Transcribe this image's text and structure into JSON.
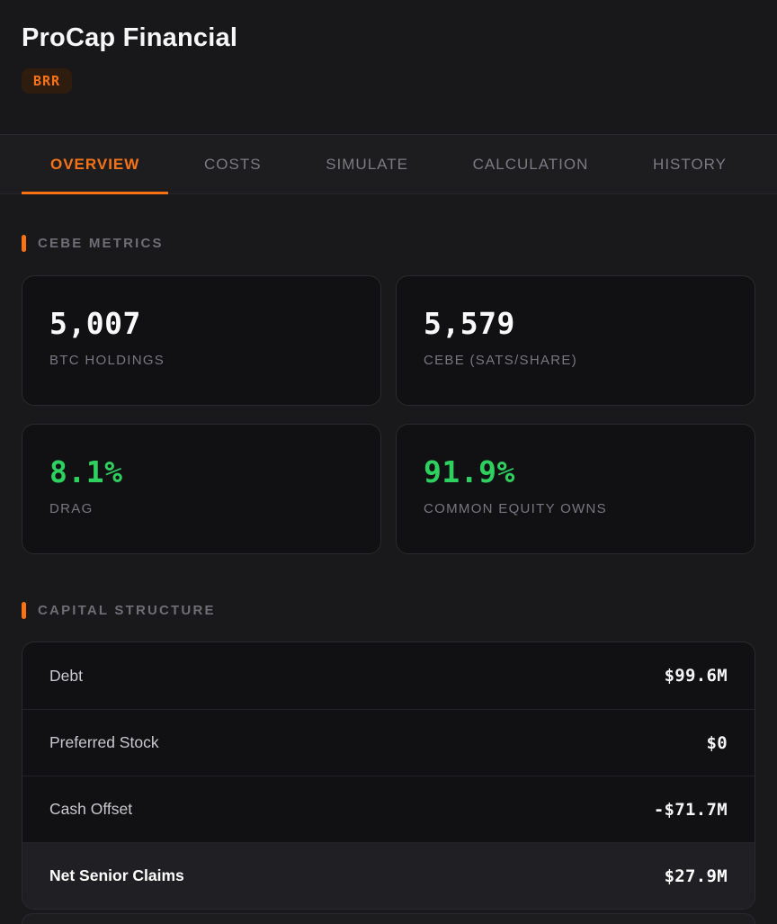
{
  "header": {
    "title": "ProCap Financial",
    "badge": "BRR"
  },
  "tabs": [
    {
      "label": "OVERVIEW",
      "active": true
    },
    {
      "label": "COSTS",
      "active": false
    },
    {
      "label": "SIMULATE",
      "active": false
    },
    {
      "label": "CALCULATION",
      "active": false
    },
    {
      "label": "HISTORY",
      "active": false
    }
  ],
  "metrics": {
    "title": "CEBE METRICS",
    "cards": [
      {
        "value": "5,007",
        "label": "BTC HOLDINGS",
        "value_color": "#fafafa"
      },
      {
        "value": "5,579",
        "label": "CEBE (SATS/SHARE)",
        "value_color": "#fafafa"
      },
      {
        "value": "8.1%",
        "label": "DRAG",
        "value_color": "#2ed160"
      },
      {
        "value": "91.9%",
        "label": "COMMON EQUITY OWNS",
        "value_color": "#2ed160"
      }
    ]
  },
  "capital": {
    "title": "CAPITAL STRUCTURE",
    "rows": [
      {
        "label": "Debt",
        "value": "$99.6M",
        "highlight": false
      },
      {
        "label": "Preferred Stock",
        "value": "$0",
        "highlight": false
      },
      {
        "label": "Cash Offset",
        "value": "-$71.7M",
        "highlight": false
      },
      {
        "label": "Net Senior Claims",
        "value": "$27.9M",
        "highlight": true
      }
    ]
  },
  "colors": {
    "accent": "#f97316",
    "positive": "#2ed160"
  }
}
